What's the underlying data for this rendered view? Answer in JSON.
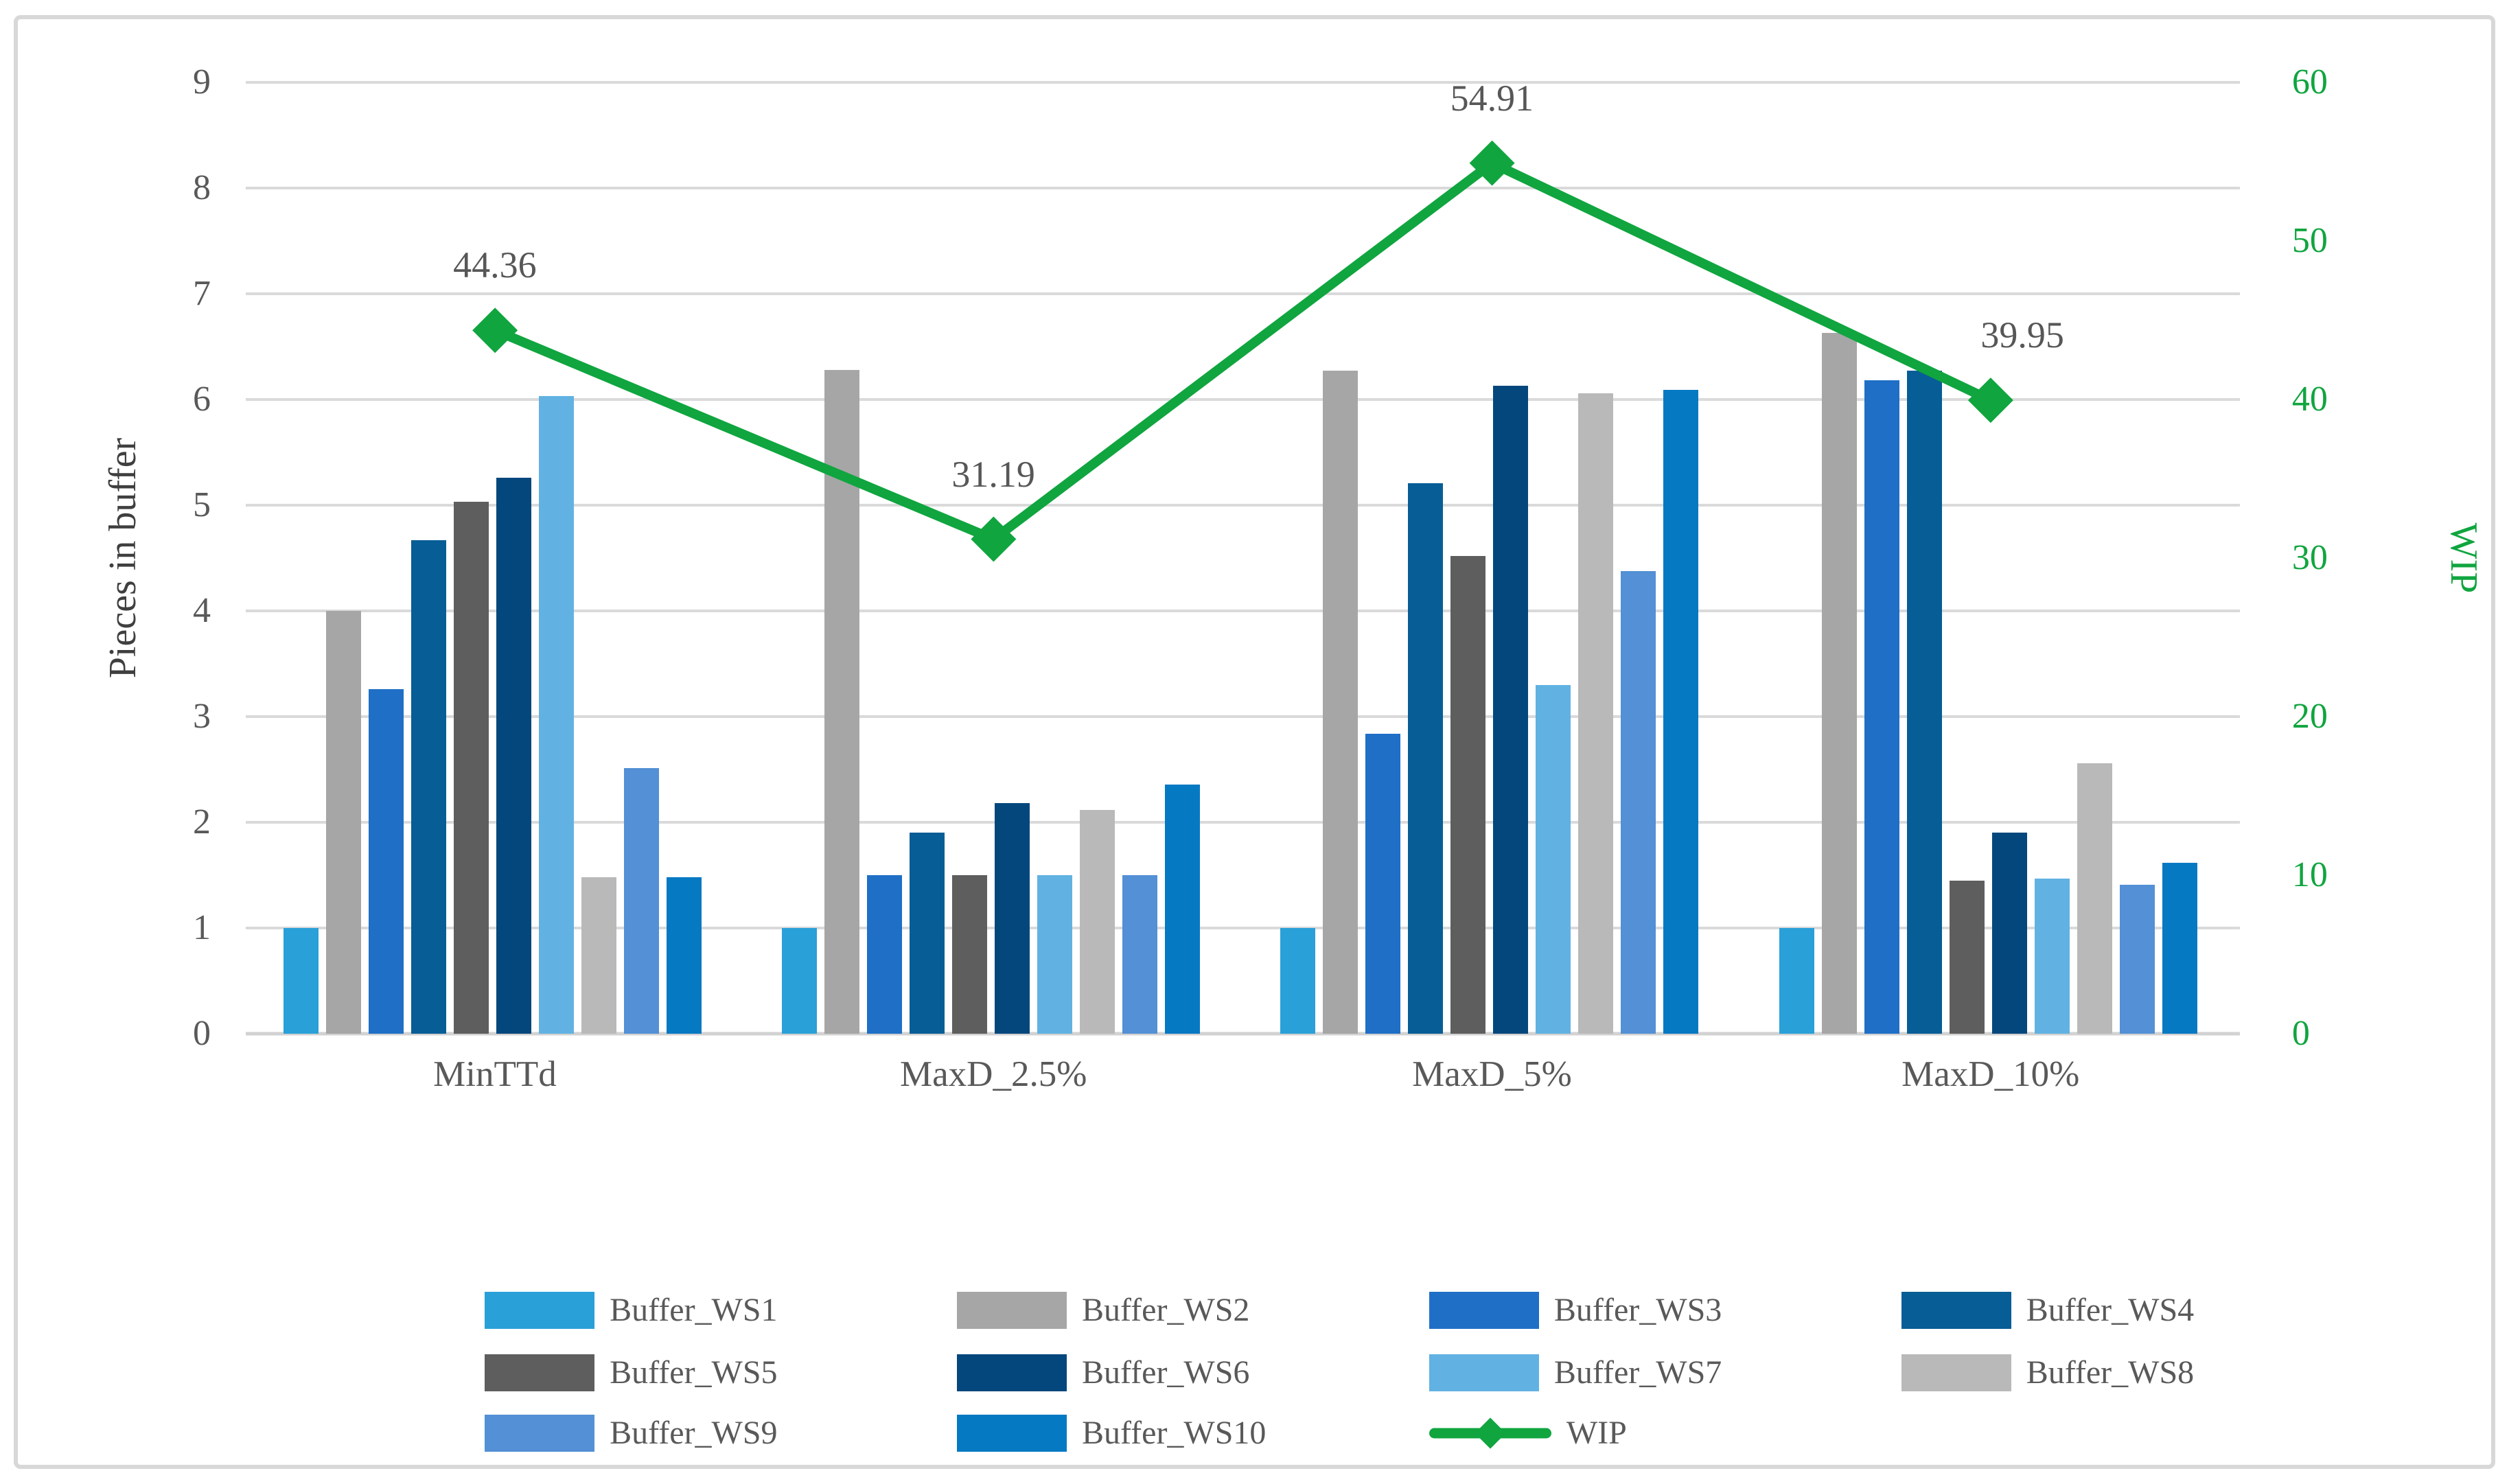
{
  "chart_data": {
    "type": "combo bar+line, grouped bars on primary axis, line with diamond markers on secondary axis",
    "categories": [
      "MinTTd",
      "MaxD_2.5%",
      "MaxD_5%",
      "MaxD_10%"
    ],
    "bar_series": [
      {
        "name": "Buffer_WS1",
        "color": "#29a0d8",
        "values": [
          1.0,
          1.0,
          1.0,
          1.0
        ]
      },
      {
        "name": "Buffer_WS2",
        "color": "#a6a6a6",
        "values": [
          4.0,
          6.28,
          6.27,
          6.63
        ]
      },
      {
        "name": "Buffer_WS3",
        "color": "#1f6fc6",
        "values": [
          3.26,
          1.5,
          2.84,
          6.18
        ]
      },
      {
        "name": "Buffer_WS4",
        "color": "#075d96",
        "values": [
          4.67,
          1.9,
          5.21,
          6.27
        ]
      },
      {
        "name": "Buffer_WS5",
        "color": "#5e5e5e",
        "values": [
          5.03,
          1.5,
          4.52,
          1.45
        ]
      },
      {
        "name": "Buffer_WS6",
        "color": "#04477c",
        "values": [
          5.26,
          2.18,
          6.13,
          1.9
        ]
      },
      {
        "name": "Buffer_WS7",
        "color": "#61b2e2",
        "values": [
          6.03,
          1.5,
          3.3,
          1.47
        ]
      },
      {
        "name": "Buffer_WS8",
        "color": "#b9b9b9",
        "values": [
          1.48,
          2.12,
          6.06,
          2.56
        ]
      },
      {
        "name": "Buffer_WS9",
        "color": "#5390d5",
        "values": [
          2.51,
          1.5,
          4.38,
          1.41
        ]
      },
      {
        "name": "Buffer_WS10",
        "color": "#0679c3",
        "values": [
          1.48,
          2.36,
          6.09,
          1.62
        ]
      }
    ],
    "line_series": {
      "name": "WIP",
      "color": "#10a53f",
      "values": [
        44.36,
        31.19,
        54.91,
        39.95
      ],
      "data_labels": [
        "44.36",
        "31.19",
        "54.91",
        "39.95"
      ]
    },
    "y_left": {
      "label": "Pieces in buffer",
      "min": 0,
      "max": 9,
      "ticks": [
        0,
        1,
        2,
        3,
        4,
        5,
        6,
        7,
        8,
        9
      ]
    },
    "y_right": {
      "label": "WIP",
      "min": 0,
      "max": 60,
      "ticks": [
        0,
        10,
        20,
        30,
        40,
        50,
        60
      ]
    },
    "grid": true,
    "legend_position": "bottom, 4 columns x 3 rows",
    "colors": {
      "grid": "#dadada",
      "tick_text": "#595959",
      "axis_title_text": "#3f3f3f",
      "data_label_text": "#575757",
      "frame_border": "#d8d8d8",
      "accent_green": "#10a53f"
    }
  }
}
